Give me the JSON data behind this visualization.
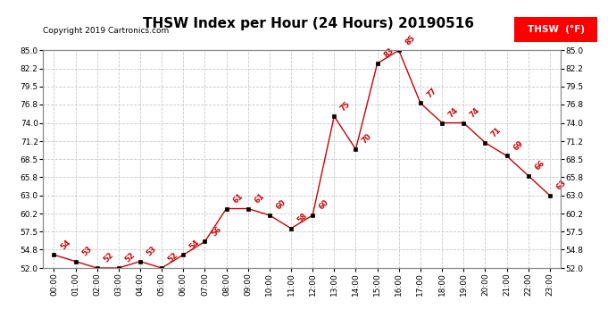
{
  "title": "THSW Index per Hour (24 Hours) 20190516",
  "copyright": "Copyright 2019 Cartronics.com",
  "legend_label": "THSW  (°F)",
  "hours": [
    0,
    1,
    2,
    3,
    4,
    5,
    6,
    7,
    8,
    9,
    10,
    11,
    12,
    13,
    14,
    15,
    16,
    17,
    18,
    19,
    20,
    21,
    22,
    23
  ],
  "values": [
    54,
    53,
    52,
    52,
    53,
    52,
    54,
    56,
    61,
    61,
    60,
    58,
    60,
    75,
    70,
    83,
    85,
    77,
    74,
    74,
    71,
    69,
    66,
    63
  ],
  "xlabels": [
    "00:00",
    "01:00",
    "02:00",
    "03:00",
    "04:00",
    "05:00",
    "06:00",
    "07:00",
    "08:00",
    "09:00",
    "10:00",
    "11:00",
    "12:00",
    "13:00",
    "14:00",
    "15:00",
    "16:00",
    "17:00",
    "18:00",
    "19:00",
    "20:00",
    "21:00",
    "22:00",
    "23:00"
  ],
  "ylim": [
    52.0,
    85.0
  ],
  "yticks": [
    52.0,
    54.8,
    57.5,
    60.2,
    63.0,
    65.8,
    68.5,
    71.2,
    74.0,
    76.8,
    79.5,
    82.2,
    85.0
  ],
  "line_color": "#cc0000",
  "marker_color": "#000000",
  "label_color": "#cc0000",
  "background_color": "#ffffff",
  "grid_color": "#c8c8c8",
  "title_fontsize": 11,
  "copyright_fontsize": 6.5,
  "label_fontsize": 6,
  "tick_fontsize": 6.5,
  "legend_fontsize": 7.5
}
